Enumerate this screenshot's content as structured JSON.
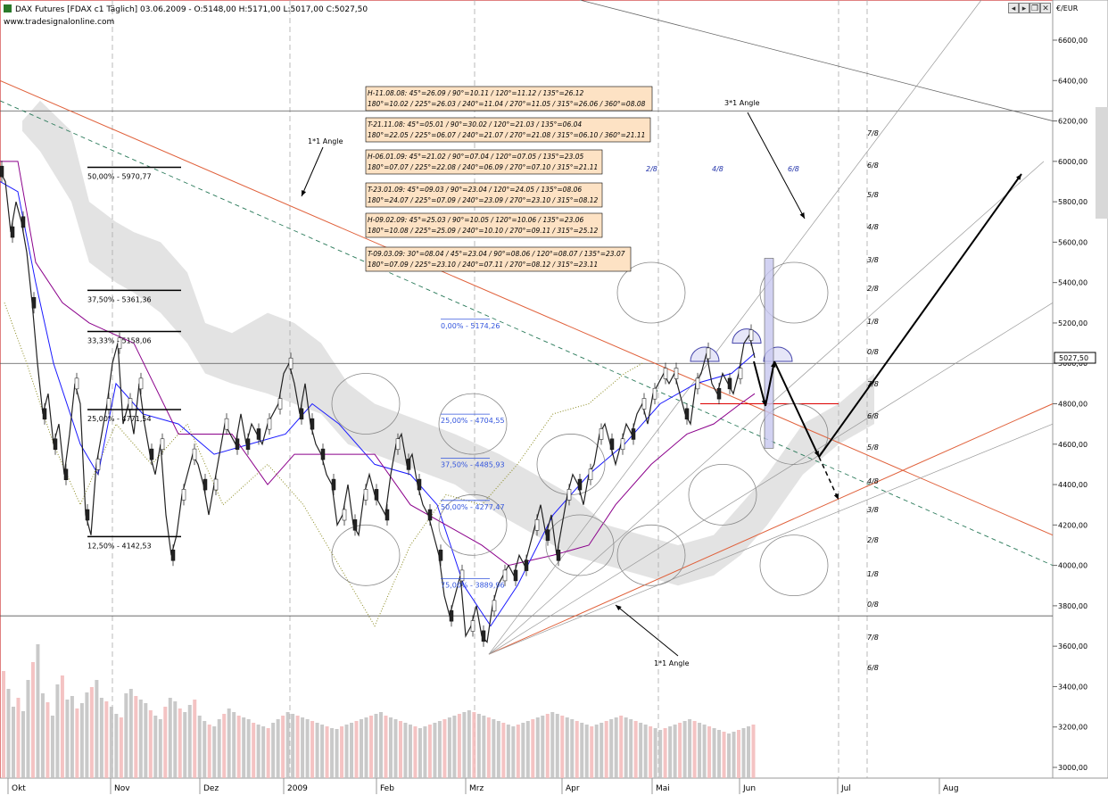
{
  "header": {
    "title": "DAX Futures [FDAX c1  Täglich] 03.06.2009 - O:5148,00 H:5171,00 L:5017,00 C:5027,50",
    "site": "www.tradesignalonline.com"
  },
  "axis": {
    "currency": "€/EUR",
    "price_tag": "5027,50"
  },
  "chart_data": {
    "type": "line",
    "x_axis_labels": [
      "Okt",
      "Nov",
      "Dez",
      "2009",
      "Feb",
      "Mrz",
      "Apr",
      "Mai",
      "Jun",
      "Jul",
      "Aug"
    ],
    "y_ticks": [
      "6600,00",
      "6400,00",
      "6200,00",
      "6000,00",
      "5800,00",
      "5600,00",
      "5400,00",
      "5200,00",
      "5000,00",
      "4800,00",
      "4600,00",
      "4400,00",
      "4200,00",
      "4000,00",
      "3800,00",
      "3600,00",
      "3400,00",
      "3200,00",
      "3000,00"
    ],
    "y_tick_values": [
      6600,
      6400,
      6200,
      6000,
      5800,
      5600,
      5400,
      5200,
      5000,
      4800,
      4600,
      4400,
      4200,
      4000,
      3800,
      3600,
      3400,
      3200,
      3000
    ],
    "ylim": [
      2970,
      6710
    ],
    "ohlc": {
      "open": 5148.0,
      "high": 5171.0,
      "low": 5017.0,
      "close": 5027.5
    },
    "close_path": [
      [
        0,
        5950
      ],
      [
        6,
        5900
      ],
      [
        12,
        5650
      ],
      [
        18,
        5800
      ],
      [
        24,
        5700
      ],
      [
        30,
        5550
      ],
      [
        36,
        5300
      ],
      [
        42,
        5000
      ],
      [
        48,
        4750
      ],
      [
        54,
        4850
      ],
      [
        60,
        4600
      ],
      [
        66,
        4700
      ],
      [
        72,
        4450
      ],
      [
        78,
        4650
      ],
      [
        84,
        4900
      ],
      [
        90,
        4800
      ],
      [
        96,
        4250
      ],
      [
        102,
        4150
      ],
      [
        108,
        4500
      ],
      [
        114,
        4650
      ],
      [
        120,
        4800
      ],
      [
        126,
        5000
      ],
      [
        132,
        5100
      ],
      [
        138,
        4700
      ],
      [
        144,
        4800
      ],
      [
        150,
        4650
      ],
      [
        156,
        4900
      ],
      [
        162,
        4700
      ],
      [
        168,
        4550
      ],
      [
        174,
        4450
      ],
      [
        180,
        4600
      ],
      [
        186,
        4250
      ],
      [
        192,
        4050
      ],
      [
        198,
        4150
      ],
      [
        204,
        4350
      ],
      [
        210,
        4450
      ],
      [
        216,
        4550
      ],
      [
        222,
        4500
      ],
      [
        228,
        4400
      ],
      [
        234,
        4250
      ],
      [
        240,
        4400
      ],
      [
        246,
        4550
      ],
      [
        252,
        4700
      ],
      [
        258,
        4650
      ],
      [
        264,
        4600
      ],
      [
        270,
        4750
      ],
      [
        276,
        4600
      ],
      [
        282,
        4700
      ],
      [
        288,
        4650
      ],
      [
        294,
        4600
      ],
      [
        300,
        4700
      ],
      [
        306,
        4750
      ],
      [
        312,
        4800
      ],
      [
        318,
        4950
      ],
      [
        324,
        5000
      ],
      [
        330,
        4900
      ],
      [
        336,
        4750
      ],
      [
        342,
        4900
      ],
      [
        348,
        4700
      ],
      [
        354,
        4600
      ],
      [
        360,
        4550
      ],
      [
        366,
        4450
      ],
      [
        372,
        4400
      ],
      [
        378,
        4200
      ],
      [
        384,
        4250
      ],
      [
        390,
        4400
      ],
      [
        396,
        4200
      ],
      [
        402,
        4150
      ],
      [
        408,
        4350
      ],
      [
        414,
        4450
      ],
      [
        420,
        4350
      ],
      [
        426,
        4300
      ],
      [
        432,
        4250
      ],
      [
        438,
        4450
      ],
      [
        444,
        4600
      ],
      [
        450,
        4650
      ],
      [
        456,
        4500
      ],
      [
        462,
        4550
      ],
      [
        468,
        4400
      ],
      [
        474,
        4300
      ],
      [
        480,
        4250
      ],
      [
        486,
        4150
      ],
      [
        492,
        4050
      ],
      [
        498,
        3850
      ],
      [
        504,
        3750
      ],
      [
        510,
        3850
      ],
      [
        516,
        3950
      ],
      [
        522,
        3650
      ],
      [
        528,
        3700
      ],
      [
        534,
        3800
      ],
      [
        540,
        3650
      ],
      [
        546,
        3620
      ],
      [
        552,
        3800
      ],
      [
        558,
        3900
      ],
      [
        564,
        3950
      ],
      [
        570,
        4000
      ],
      [
        576,
        3950
      ],
      [
        582,
        4050
      ],
      [
        588,
        4000
      ],
      [
        594,
        4100
      ],
      [
        600,
        4200
      ],
      [
        606,
        4300
      ],
      [
        612,
        4150
      ],
      [
        618,
        4250
      ],
      [
        624,
        4050
      ],
      [
        630,
        4200
      ],
      [
        636,
        4350
      ],
      [
        642,
        4450
      ],
      [
        648,
        4400
      ],
      [
        654,
        4300
      ],
      [
        660,
        4450
      ],
      [
        666,
        4500
      ],
      [
        672,
        4650
      ],
      [
        678,
        4700
      ],
      [
        684,
        4600
      ],
      [
        690,
        4500
      ],
      [
        696,
        4600
      ],
      [
        702,
        4700
      ],
      [
        708,
        4650
      ],
      [
        714,
        4750
      ],
      [
        720,
        4800
      ],
      [
        726,
        4700
      ],
      [
        732,
        4850
      ],
      [
        738,
        4900
      ],
      [
        744,
        4950
      ],
      [
        750,
        4900
      ],
      [
        756,
        4950
      ],
      [
        762,
        4850
      ],
      [
        768,
        4750
      ],
      [
        774,
        4700
      ],
      [
        780,
        4900
      ],
      [
        786,
        4950
      ],
      [
        792,
        5050
      ],
      [
        798,
        4900
      ],
      [
        804,
        4850
      ],
      [
        810,
        4950
      ],
      [
        816,
        4900
      ],
      [
        822,
        4850
      ],
      [
        828,
        4950
      ],
      [
        834,
        5100
      ],
      [
        840,
        5140
      ],
      [
        846,
        5027.5
      ]
    ],
    "volume_heights": [
      120,
      100,
      80,
      90,
      75,
      110,
      130,
      150,
      95,
      85,
      70,
      105,
      115,
      88,
      92,
      78,
      84,
      96,
      102,
      110,
      90,
      86,
      80,
      72,
      68,
      95,
      100,
      92,
      88,
      84,
      76,
      70,
      66,
      80,
      90,
      86,
      78,
      74,
      82,
      88,
      70,
      64,
      60,
      58,
      66,
      72,
      78,
      74,
      70,
      68,
      66,
      62,
      60,
      58,
      56,
      62,
      66,
      70,
      74,
      72,
      70,
      68,
      66,
      64,
      62,
      60,
      58,
      56,
      55,
      58,
      60,
      62,
      64,
      66,
      68,
      70,
      72,
      74,
      70,
      68,
      66,
      64,
      62,
      60,
      58,
      56,
      58,
      60,
      62,
      64,
      66,
      68,
      70,
      72,
      74,
      76,
      74,
      72,
      70,
      68,
      66,
      64,
      62,
      60,
      58,
      60,
      62,
      64,
      66,
      68,
      70,
      72,
      74,
      72,
      70,
      68,
      66,
      64,
      62,
      60,
      58,
      60,
      62,
      64,
      66,
      68,
      70,
      68,
      66,
      64,
      62,
      60,
      58,
      56,
      54,
      56,
      58,
      60,
      62,
      64,
      66,
      64,
      62,
      60,
      58,
      56,
      54,
      52,
      50,
      52,
      54,
      56,
      58,
      60
    ],
    "fibonacci_levels": [
      {
        "label": "50,00% - 5970,77",
        "value": 5970.77
      },
      {
        "label": "37,50% - 5361,36",
        "value": 5361.36
      },
      {
        "label": "33,33% - 5158,06",
        "value": 5158.06
      },
      {
        "label": "25,00% - 4771,54",
        "value": 4771.54
      },
      {
        "label": "12,50% - 4142,53",
        "value": 4142.53
      }
    ],
    "fibonacci_levels_2": [
      {
        "label": "0,00% - 5174,26",
        "value": 5174.26
      },
      {
        "label": "25,00% - 4704,55",
        "value": 4704.55
      },
      {
        "label": "37,50% - 4485,93",
        "value": 4485.93
      },
      {
        "label": "50,00% - 4277,47",
        "value": 4277.47
      },
      {
        "label": "75,00% - 3889,96",
        "value": 3889.96
      }
    ],
    "gann_levels": [
      "7/8",
      "6/8",
      "5/8",
      "4/8",
      "3/8",
      "2/8",
      "1/8",
      "0/8",
      "7/8",
      "6/8",
      "5/8",
      "4/8",
      "3/8",
      "2/8",
      "1/8",
      "0/8",
      "7/8",
      "6/8"
    ],
    "gann_top": [
      "2/8",
      "4/8",
      "6/8"
    ],
    "annotations": [
      {
        "label": "1*1 Angle"
      },
      {
        "label": "3*1 Angle"
      },
      {
        "label": "1*1 Angle"
      }
    ],
    "info_boxes": [
      {
        "line1": "H-11.08.08: 45°=26.09 / 90°=10.11 / 120°=11.12 / 135°=26.12",
        "line2": "180°=10.02 / 225°=26.03 / 240°=11.04 / 270°=11.05 / 315°=26.06 / 360°=08.08"
      },
      {
        "line1": "T-21.11.08: 45°=05.01 / 90°=30.02 / 120°=21.03 / 135°=06.04",
        "line2": "180°=22.05 / 225°=06.07 / 240°=21.07 / 270°=21.08 / 315°=06.10 / 360°=21.11"
      },
      {
        "line1": "H-06.01.09: 45°=21.02 / 90°=07.04 / 120°=07.05 / 135°=23.05",
        "line2": "180°=07.07 / 225°=22.08 / 240°=06.09 / 270°=07.10 / 315°=21.11"
      },
      {
        "line1": "T-23.01.09: 45°=09.03 / 90°=23.04 / 120°=24.05 / 135°=08.06",
        "line2": "180°=24.07 / 225°=07.09 / 240°=23.09 / 270°=23.10 / 315°=08.12"
      },
      {
        "line1": "H-09.02.09: 45°=25.03 / 90°=10.05 / 120°=10.06 / 135°=23.06",
        "line2": "180°=10.08 / 225°=25.09 / 240°=10.10 / 270°=09.11 / 315°=25.12"
      },
      {
        "line1": "T-09.03.09: 30°=08.04 / 45°=23.04 / 90°=08.06 / 120°=08.07 / 135°=23.07",
        "line2": "180°=07.09 / 225°=23.10 / 240°=07.11 / 270°=08.12 / 315°=23.11"
      }
    ],
    "colors": {
      "price": "#222222",
      "kijun": "#1a1aff",
      "senkou": "#8b008b",
      "trend": "#e0603a",
      "cloud": "#cccccc",
      "info_box": "#fde2c4",
      "volume_up": "#c0c0c0",
      "volume_down": "#f2b8b8"
    }
  }
}
